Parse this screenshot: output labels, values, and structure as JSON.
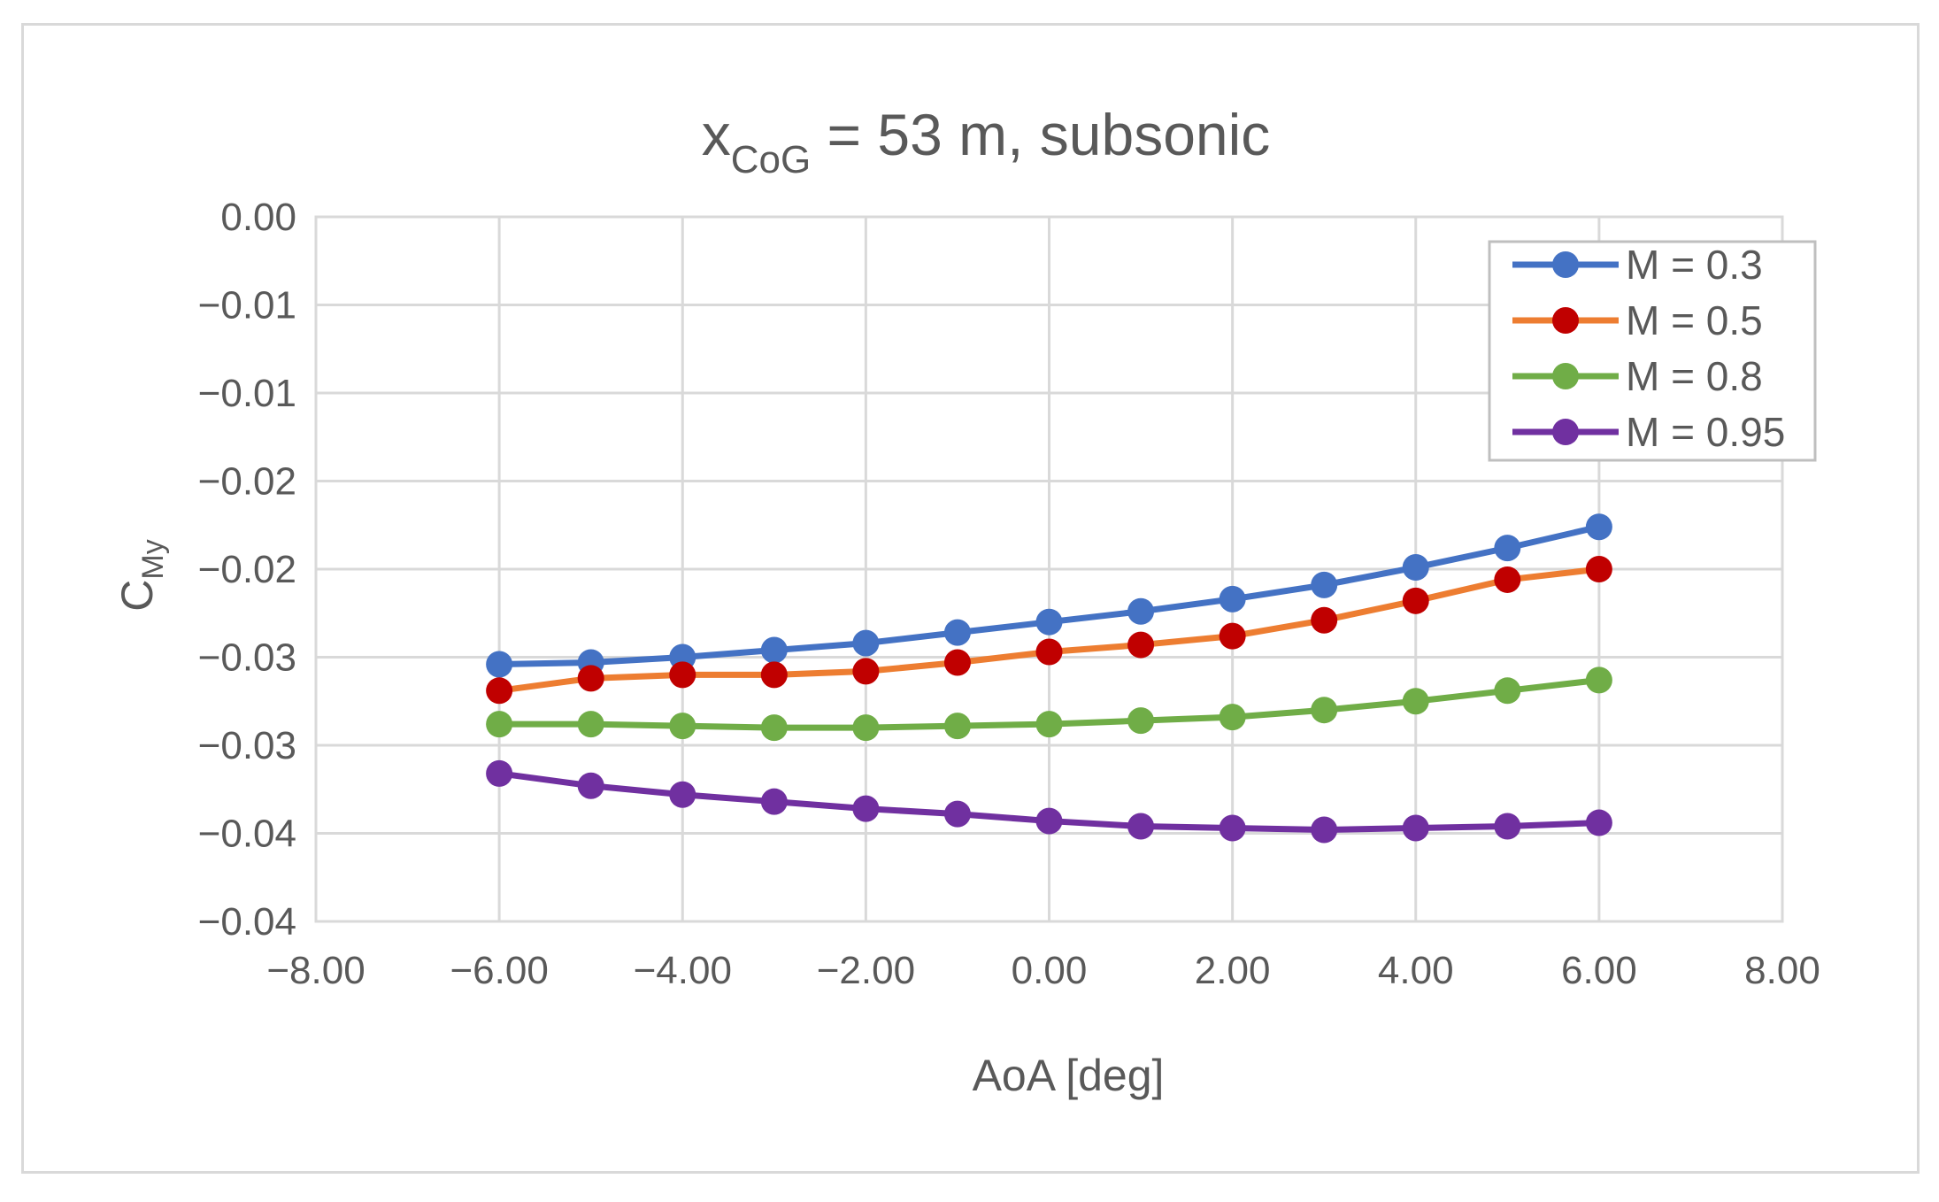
{
  "chart_data": {
    "type": "line",
    "title": {
      "main": "x",
      "subscript": "CoG",
      "rest": " = 53 m, subsonic"
    },
    "xlabel": "AoA [deg]",
    "ylabel": {
      "main": "C",
      "subscript": "My"
    },
    "xlim": [
      -8,
      8
    ],
    "ylim": [
      -0.04,
      0.0
    ],
    "x_ticks": [
      -8,
      -6,
      -4,
      -2,
      0,
      2,
      4,
      6,
      8
    ],
    "x_tick_labels": [
      "−8.00",
      "−6.00",
      "−4.00",
      "−2.00",
      "0.00",
      "2.00",
      "4.00",
      "6.00",
      "8.00"
    ],
    "y_ticks": [
      0.0,
      -0.005,
      -0.01,
      -0.015,
      -0.02,
      -0.025,
      -0.03,
      -0.035,
      -0.04
    ],
    "y_tick_labels": [
      "0.00",
      "−0.01",
      "−0.01",
      "−0.02",
      "−0.02",
      "−0.03",
      "−0.03",
      "−0.04",
      "−0.04"
    ],
    "grid": true,
    "legend_position": "top-right",
    "x": [
      -6,
      -5,
      -4,
      -3,
      -2,
      -1,
      0,
      1,
      2,
      3,
      4,
      5,
      6
    ],
    "series": [
      {
        "name": "M = 0.3",
        "color": "#4472C4",
        "marker_color": "#4472C4",
        "values": [
          -0.0254,
          -0.0253,
          -0.025,
          -0.0246,
          -0.0242,
          -0.0236,
          -0.023,
          -0.0224,
          -0.0217,
          -0.0209,
          -0.0199,
          -0.0188,
          -0.0176
        ]
      },
      {
        "name": "M = 0.5",
        "color": "#ED7D31",
        "marker_color": "#C00000",
        "values": [
          -0.0269,
          -0.0262,
          -0.026,
          -0.026,
          -0.0258,
          -0.0253,
          -0.0247,
          -0.0243,
          -0.0238,
          -0.0229,
          -0.0218,
          -0.0206,
          -0.02
        ]
      },
      {
        "name": "M = 0.8",
        "color": "#70AD47",
        "marker_color": "#70AD47",
        "values": [
          -0.0288,
          -0.0288,
          -0.0289,
          -0.029,
          -0.029,
          -0.0289,
          -0.0288,
          -0.0286,
          -0.0284,
          -0.028,
          -0.0275,
          -0.0269,
          -0.0263
        ]
      },
      {
        "name": "M = 0.95",
        "color": "#7030A0",
        "marker_color": "#7030A0",
        "values": [
          -0.0316,
          -0.0323,
          -0.0328,
          -0.0332,
          -0.0336,
          -0.0339,
          -0.0343,
          -0.0346,
          -0.0347,
          -0.0348,
          -0.0347,
          -0.0346,
          -0.0344
        ]
      }
    ]
  }
}
